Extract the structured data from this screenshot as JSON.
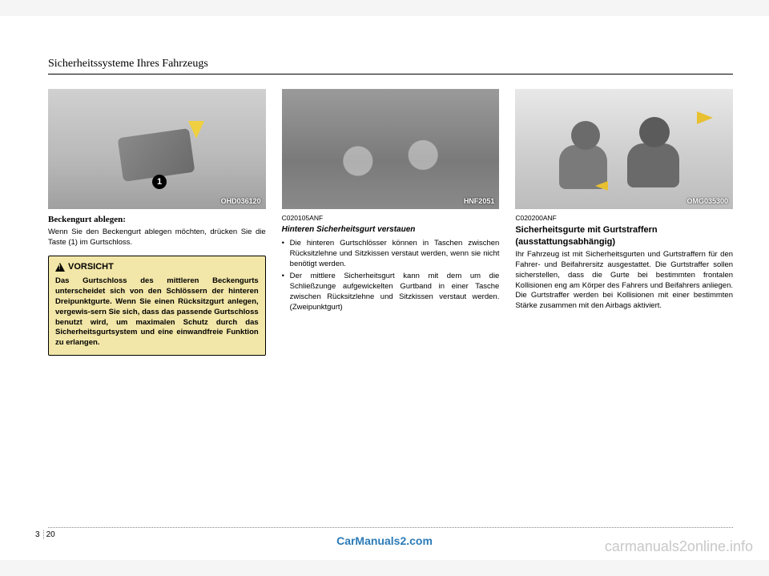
{
  "header": {
    "title": "Sicherheitssysteme Ihres Fahrzeugs"
  },
  "col1": {
    "figure_label": "OHD036120",
    "marker": "1",
    "caption_bold": "Beckengurt ablegen:",
    "body": "Wenn Sie den Beckengurt ablegen möchten, drücken Sie die Taste (1) im Gurtschloss.",
    "caution_title": "VORSICHT",
    "caution_body": "Das Gurtschloss des mittleren Beckengurts unterscheidet sich von den Schlössern der hinteren Dreipunktgurte. Wenn Sie einen Rücksitzgurt anlegen, vergewis-sern Sie sich, dass das passende Gurtschloss benutzt wird, um maximalen Schutz durch das Sicherheitsgurtsystem und eine einwandfreie Funktion zu erlangen."
  },
  "col2": {
    "figure_label": "HNF2051",
    "code": "C020105ANF",
    "caption_italic": "Hinteren Sicherheitsgurt verstauen",
    "bullets": [
      "Die hinteren Gurtschlösser können in Taschen zwischen Rücksitzlehne und Sitzkissen verstaut werden, wenn sie nicht benötigt werden.",
      "Der mittlere Sicherheitsgurt kann mit dem um die Schließzunge aufgewickelten Gurtband in einer Tasche zwischen Rücksitzlehne und Sitzkissen verstaut werden. (Zweipunktgurt)"
    ]
  },
  "col3": {
    "figure_label": "OMG035300",
    "code": "C020200ANF",
    "heading": "Sicherheitsgurte mit Gurtstraffern (ausstattungsabhängig)",
    "body": "Ihr Fahrzeug ist mit Sicherheitsgurten und Gurtstraffern für den Fahrer- und Beifahrersitz ausgestattet. Die Gurtstraffer sollen sicherstellen, dass die Gurte bei bestimmten frontalen Kollisionen eng am Körper des Fahrers und Beifahrers anliegen. Die Gurtstraffer werden bei Kollisionen mit einer bestimmten Stärke zusammen mit den Airbags aktiviert."
  },
  "footer": {
    "chapter": "3",
    "page": "20",
    "watermark": "CarManuals2.com",
    "site": "carmanuals2online.info"
  },
  "colors": {
    "caution_bg": "#f2e6a8",
    "watermark_color": "#2b7bb8",
    "site_color": "#c8c8c8"
  }
}
